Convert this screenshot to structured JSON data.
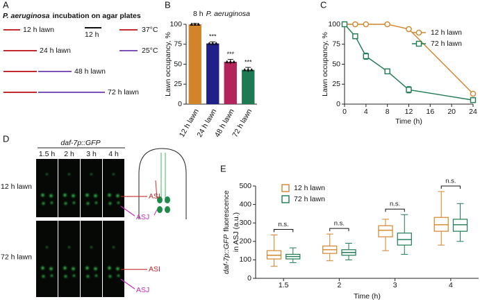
{
  "incubation": {
    "panel": "A",
    "title_italic": "P. aeruginosa",
    "title_rest": "incubation on agar plates",
    "conditions": [
      {
        "label": "12 h lawn",
        "hours_37c": 12,
        "hours_25c": 0
      },
      {
        "label": "24 h lawn",
        "hours_37c": 24,
        "hours_25c": 0
      },
      {
        "label": "48 h lawn",
        "hours_37c": 24,
        "hours_25c": 24
      },
      {
        "label": "72 h lawn",
        "hours_37c": 24,
        "hours_25c": 48
      }
    ],
    "scale_bar": {
      "label": "12 h",
      "hours": 12
    },
    "temperatures": [
      {
        "label": "37°C",
        "color": "#c62a2f"
      },
      {
        "label": "25°C",
        "color": "#7f52b8"
      }
    ]
  },
  "chart_data": [
    {
      "type": "bar",
      "panel": "B",
      "title_prefix": "8 h",
      "title_italic": "P. aeruginosa",
      "categories": [
        "12 h lawn",
        "24 h lawn",
        "48 h lawn",
        "72 h lawn"
      ],
      "values": [
        100,
        76,
        53,
        43
      ],
      "errors": [
        1,
        2,
        3,
        3
      ],
      "colors": [
        "#d3842a",
        "#20208a",
        "#b3245d",
        "#1d7a52"
      ],
      "significance": [
        null,
        "***",
        "***",
        "***"
      ],
      "y_label": "Lawn occupancy, %",
      "ylim": [
        0,
        100
      ],
      "yticks": [
        0,
        25,
        50,
        75,
        100
      ]
    },
    {
      "type": "line",
      "panel": "C",
      "x": [
        0,
        2,
        4,
        8,
        12,
        24
      ],
      "series": [
        {
          "name": "12 h lawn",
          "color": "#d3842a",
          "marker": "circle",
          "values": [
            100,
            100,
            100,
            100,
            94,
            13
          ],
          "errors": [
            0,
            0,
            0,
            0,
            2,
            1
          ]
        },
        {
          "name": "72 h lawn",
          "color": "#1d7a52",
          "marker": "square",
          "values": [
            100,
            85,
            60,
            41,
            18,
            5
          ],
          "errors": [
            0,
            3,
            4,
            3,
            4,
            2
          ]
        }
      ],
      "x_label": "Time (h)",
      "y_label": "Lawn occupancy, %",
      "xlim": [
        0,
        24
      ],
      "xticks": [
        0,
        4,
        8,
        12,
        16,
        20,
        24
      ],
      "ylim": [
        0,
        100
      ],
      "yticks": [
        0,
        25,
        50,
        75,
        100
      ],
      "legend": "upper right"
    },
    {
      "type": "box",
      "panel": "E",
      "categories": [
        "1.5",
        "2",
        "3",
        "4"
      ],
      "series": [
        {
          "name": "12 h lawn",
          "color": "#d3842a",
          "min": [
            65,
            95,
            150,
            180
          ],
          "q1": [
            105,
            135,
            225,
            255
          ],
          "median": [
            125,
            155,
            260,
            290
          ],
          "q3": [
            150,
            175,
            285,
            330
          ],
          "max": [
            235,
            240,
            320,
            470
          ]
        },
        {
          "name": "72 h lawn",
          "color": "#1d7a52",
          "min": [
            85,
            100,
            130,
            200
          ],
          "q1": [
            105,
            125,
            180,
            255
          ],
          "median": [
            118,
            140,
            210,
            290
          ],
          "q3": [
            130,
            155,
            245,
            320
          ],
          "max": [
            165,
            190,
            345,
            405
          ]
        }
      ],
      "significance": [
        "n.s.",
        "n.s.",
        "n.s.",
        "n.s."
      ],
      "x_label": "Time (h)",
      "y_label_italic": "daf-7p::GFP",
      "y_label_rest": "fluorescence",
      "y_label_line2": "in ASJ (a.u.)",
      "ylim": [
        0,
        500
      ],
      "yticks": [
        0,
        100,
        200,
        300,
        400,
        500
      ],
      "legend": "upper left"
    }
  ],
  "imaging": {
    "panel": "D",
    "reporter": "daf-7p::GFP",
    "timepoints": [
      "1.5 h",
      "2 h",
      "3 h",
      "4 h"
    ],
    "conditions": [
      "12 h lawn",
      "72 h lawn"
    ],
    "neurons": {
      "asi": "ASI",
      "asj": "ASJ"
    }
  }
}
